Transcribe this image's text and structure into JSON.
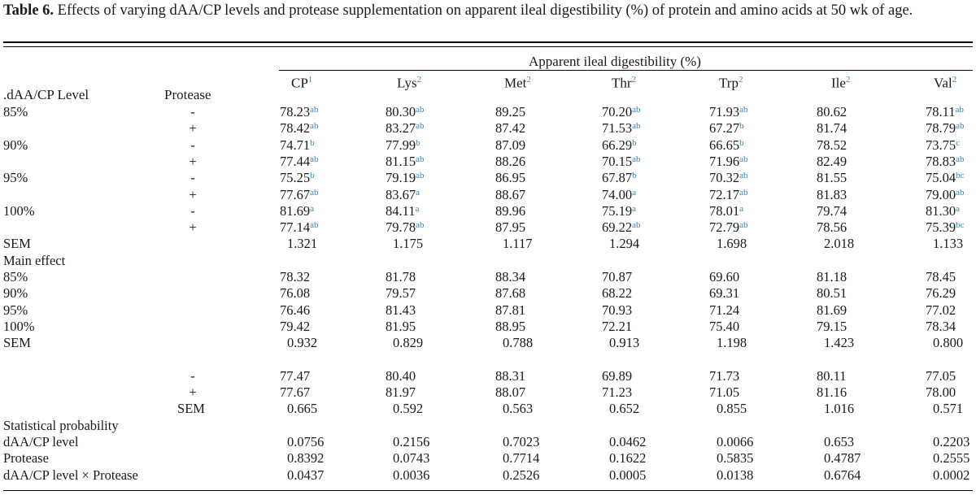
{
  "caption": {
    "label": "Table 6.",
    "text": "Effects of varying dAA/CP levels and protease supplementation on apparent ileal digestibility (%) of protein and amino acids at 50 wk of age."
  },
  "header": {
    "span_label": "Apparent ileal digestibility (%)",
    "level_label": ".dAA/CP Level",
    "protease_label": "Protease",
    "columns": [
      {
        "name": "CP",
        "sup": "1"
      },
      {
        "name": "Lys",
        "sup": "2"
      },
      {
        "name": "Met",
        "sup": "2"
      },
      {
        "name": "Thr",
        "sup": "2"
      },
      {
        "name": "Trp",
        "sup": "2"
      },
      {
        "name": "Ile",
        "sup": "2"
      },
      {
        "name": "Val",
        "sup": "2"
      }
    ]
  },
  "rows": [
    {
      "label": "85%",
      "protease": "-",
      "values": [
        [
          "78.23",
          "ab"
        ],
        [
          "80.30",
          "ab"
        ],
        [
          "89.25",
          ""
        ],
        [
          "70.20",
          "ab"
        ],
        [
          "71.93",
          "ab"
        ],
        [
          "80.62",
          ""
        ],
        [
          "78.11",
          "ab"
        ]
      ]
    },
    {
      "label": "",
      "protease": "+",
      "values": [
        [
          "78.42",
          "ab"
        ],
        [
          "83.27",
          "ab"
        ],
        [
          "87.42",
          ""
        ],
        [
          "71.53",
          "ab"
        ],
        [
          "67.27",
          "b"
        ],
        [
          "81.74",
          ""
        ],
        [
          "78.79",
          "ab"
        ]
      ]
    },
    {
      "label": "90%",
      "protease": "-",
      "values": [
        [
          "74.71",
          "b"
        ],
        [
          "77.99",
          "b"
        ],
        [
          "87.09",
          ""
        ],
        [
          "66.29",
          "b"
        ],
        [
          "66.65",
          "b"
        ],
        [
          "78.52",
          ""
        ],
        [
          "73.75",
          "c"
        ]
      ]
    },
    {
      "label": "",
      "protease": "+",
      "values": [
        [
          "77.44",
          "ab"
        ],
        [
          "81.15",
          "ab"
        ],
        [
          "88.26",
          ""
        ],
        [
          "70.15",
          "ab"
        ],
        [
          "71.96",
          "ab"
        ],
        [
          "82.49",
          ""
        ],
        [
          "78.83",
          "ab"
        ]
      ]
    },
    {
      "label": "95%",
      "protease": "-",
      "values": [
        [
          "75.25",
          "b"
        ],
        [
          "79.19",
          "ab"
        ],
        [
          "86.95",
          ""
        ],
        [
          "67.87",
          "b"
        ],
        [
          "70.32",
          "ab"
        ],
        [
          "81.55",
          ""
        ],
        [
          "75.04",
          "bc"
        ]
      ]
    },
    {
      "label": "",
      "protease": "+",
      "values": [
        [
          "77.67",
          "ab"
        ],
        [
          "83.67",
          "a"
        ],
        [
          "88.67",
          ""
        ],
        [
          "74.00",
          "a"
        ],
        [
          "72.17",
          "ab"
        ],
        [
          "81.83",
          ""
        ],
        [
          "79.00",
          "ab"
        ]
      ]
    },
    {
      "label": "100%",
      "protease": "-",
      "values": [
        [
          "81.69",
          "a"
        ],
        [
          "84.11",
          "a"
        ],
        [
          "89.96",
          ""
        ],
        [
          "75.19",
          "a"
        ],
        [
          "78.01",
          "a"
        ],
        [
          "79.74",
          ""
        ],
        [
          "81.30",
          "a"
        ]
      ]
    },
    {
      "label": "",
      "protease": "+",
      "values": [
        [
          "77.14",
          "ab"
        ],
        [
          "79.78",
          "ab"
        ],
        [
          "87.95",
          ""
        ],
        [
          "69.22",
          "ab"
        ],
        [
          "72.79",
          "ab"
        ],
        [
          "78.56",
          ""
        ],
        [
          "75.39",
          "bc"
        ]
      ]
    },
    {
      "label": "SEM",
      "protease": "",
      "sem": true,
      "values": [
        [
          "1.321",
          ""
        ],
        [
          "1.175",
          ""
        ],
        [
          "1.117",
          ""
        ],
        [
          "1.294",
          ""
        ],
        [
          "1.698",
          ""
        ],
        [
          "2.018",
          ""
        ],
        [
          "1.133",
          ""
        ]
      ]
    },
    {
      "label": "Main effect",
      "protease": "",
      "values": []
    },
    {
      "label": "85%",
      "protease": "",
      "values": [
        [
          "78.32",
          ""
        ],
        [
          "81.78",
          ""
        ],
        [
          "88.34",
          ""
        ],
        [
          "70.87",
          ""
        ],
        [
          "69.60",
          ""
        ],
        [
          "81.18",
          ""
        ],
        [
          "78.45",
          ""
        ]
      ]
    },
    {
      "label": "90%",
      "protease": "",
      "values": [
        [
          "76.08",
          ""
        ],
        [
          "79.57",
          ""
        ],
        [
          "87.68",
          ""
        ],
        [
          "68.22",
          ""
        ],
        [
          "69.31",
          ""
        ],
        [
          "80.51",
          ""
        ],
        [
          "76.29",
          ""
        ]
      ]
    },
    {
      "label": "95%",
      "protease": "",
      "values": [
        [
          "76.46",
          ""
        ],
        [
          "81.43",
          ""
        ],
        [
          "87.81",
          ""
        ],
        [
          "70.93",
          ""
        ],
        [
          "71.24",
          ""
        ],
        [
          "81.69",
          ""
        ],
        [
          "77.02",
          ""
        ]
      ]
    },
    {
      "label": "100%",
      "protease": "",
      "values": [
        [
          "79.42",
          ""
        ],
        [
          "81.95",
          ""
        ],
        [
          "88.95",
          ""
        ],
        [
          "72.21",
          ""
        ],
        [
          "75.40",
          ""
        ],
        [
          "79.15",
          ""
        ],
        [
          "78.34",
          ""
        ]
      ]
    },
    {
      "label": "SEM",
      "protease": "",
      "sem": true,
      "values": [
        [
          "0.932",
          ""
        ],
        [
          "0.829",
          ""
        ],
        [
          "0.788",
          ""
        ],
        [
          "0.913",
          ""
        ],
        [
          "1.198",
          ""
        ],
        [
          "1.423",
          ""
        ],
        [
          "0.800",
          ""
        ]
      ]
    },
    {
      "label": "",
      "protease": "",
      "values": []
    },
    {
      "label": "",
      "protease": "-",
      "values": [
        [
          "77.47",
          ""
        ],
        [
          "80.40",
          ""
        ],
        [
          "88.31",
          ""
        ],
        [
          "69.89",
          ""
        ],
        [
          "71.73",
          ""
        ],
        [
          "80.11",
          ""
        ],
        [
          "77.05",
          ""
        ]
      ]
    },
    {
      "label": "",
      "protease": "+",
      "values": [
        [
          "77.67",
          ""
        ],
        [
          "81.97",
          ""
        ],
        [
          "88.07",
          ""
        ],
        [
          "71.23",
          ""
        ],
        [
          "71.05",
          ""
        ],
        [
          "81.16",
          ""
        ],
        [
          "78.00",
          ""
        ]
      ]
    },
    {
      "label": "",
      "protease": "SEM",
      "sem": true,
      "protsem": true,
      "values": [
        [
          "0.665",
          ""
        ],
        [
          "0.592",
          ""
        ],
        [
          "0.563",
          ""
        ],
        [
          "0.652",
          ""
        ],
        [
          "0.855",
          ""
        ],
        [
          "1.016",
          ""
        ],
        [
          "0.571",
          ""
        ]
      ]
    },
    {
      "label": "Statistical probability",
      "protease": "",
      "values": []
    },
    {
      "label": "dAA/CP level",
      "protease": "",
      "sem": true,
      "values": [
        [
          "0.0756",
          ""
        ],
        [
          "0.2156",
          ""
        ],
        [
          "0.7023",
          ""
        ],
        [
          "0.0462",
          ""
        ],
        [
          "0.0066",
          ""
        ],
        [
          "0.653",
          ""
        ],
        [
          "0.2203",
          ""
        ]
      ]
    },
    {
      "label": "Protease",
      "protease": "",
      "sem": true,
      "values": [
        [
          "0.8392",
          ""
        ],
        [
          "0.0743",
          ""
        ],
        [
          "0.7714",
          ""
        ],
        [
          "0.1622",
          ""
        ],
        [
          "0.5835",
          ""
        ],
        [
          "0.4787",
          ""
        ],
        [
          "0.2555",
          ""
        ]
      ]
    },
    {
      "label": "dAA/CP level × Protease",
      "protease": "",
      "sem": true,
      "values": [
        [
          "0.0437",
          ""
        ],
        [
          "0.0036",
          ""
        ],
        [
          "0.2526",
          ""
        ],
        [
          "0.0005",
          ""
        ],
        [
          "0.0138",
          ""
        ],
        [
          "0.6764",
          ""
        ],
        [
          "0.0002",
          ""
        ]
      ]
    }
  ],
  "colors": {
    "superscript": "#2a8bbf"
  }
}
